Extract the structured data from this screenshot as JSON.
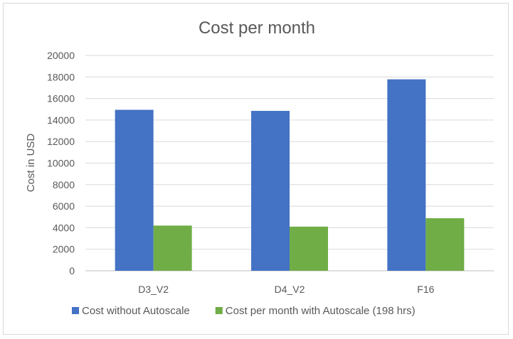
{
  "chart_data": {
    "type": "bar",
    "title": "Cost per month",
    "xlabel": "",
    "ylabel": "Cost in USD",
    "categories": [
      "D3_V2",
      "D4_V2",
      "F16"
    ],
    "series": [
      {
        "name": "Cost without Autoscale",
        "color": "#4472c4",
        "values": [
          14950,
          14850,
          17780
        ]
      },
      {
        "name": "Cost per month with Autoscale (198 hrs)",
        "color": "#70ad47",
        "values": [
          4200,
          4100,
          4880
        ]
      }
    ],
    "ylim": [
      0,
      20000
    ],
    "yticks": [
      0,
      2000,
      4000,
      6000,
      8000,
      10000,
      12000,
      14000,
      16000,
      18000,
      20000
    ],
    "grid": true,
    "legend": "bottom"
  }
}
